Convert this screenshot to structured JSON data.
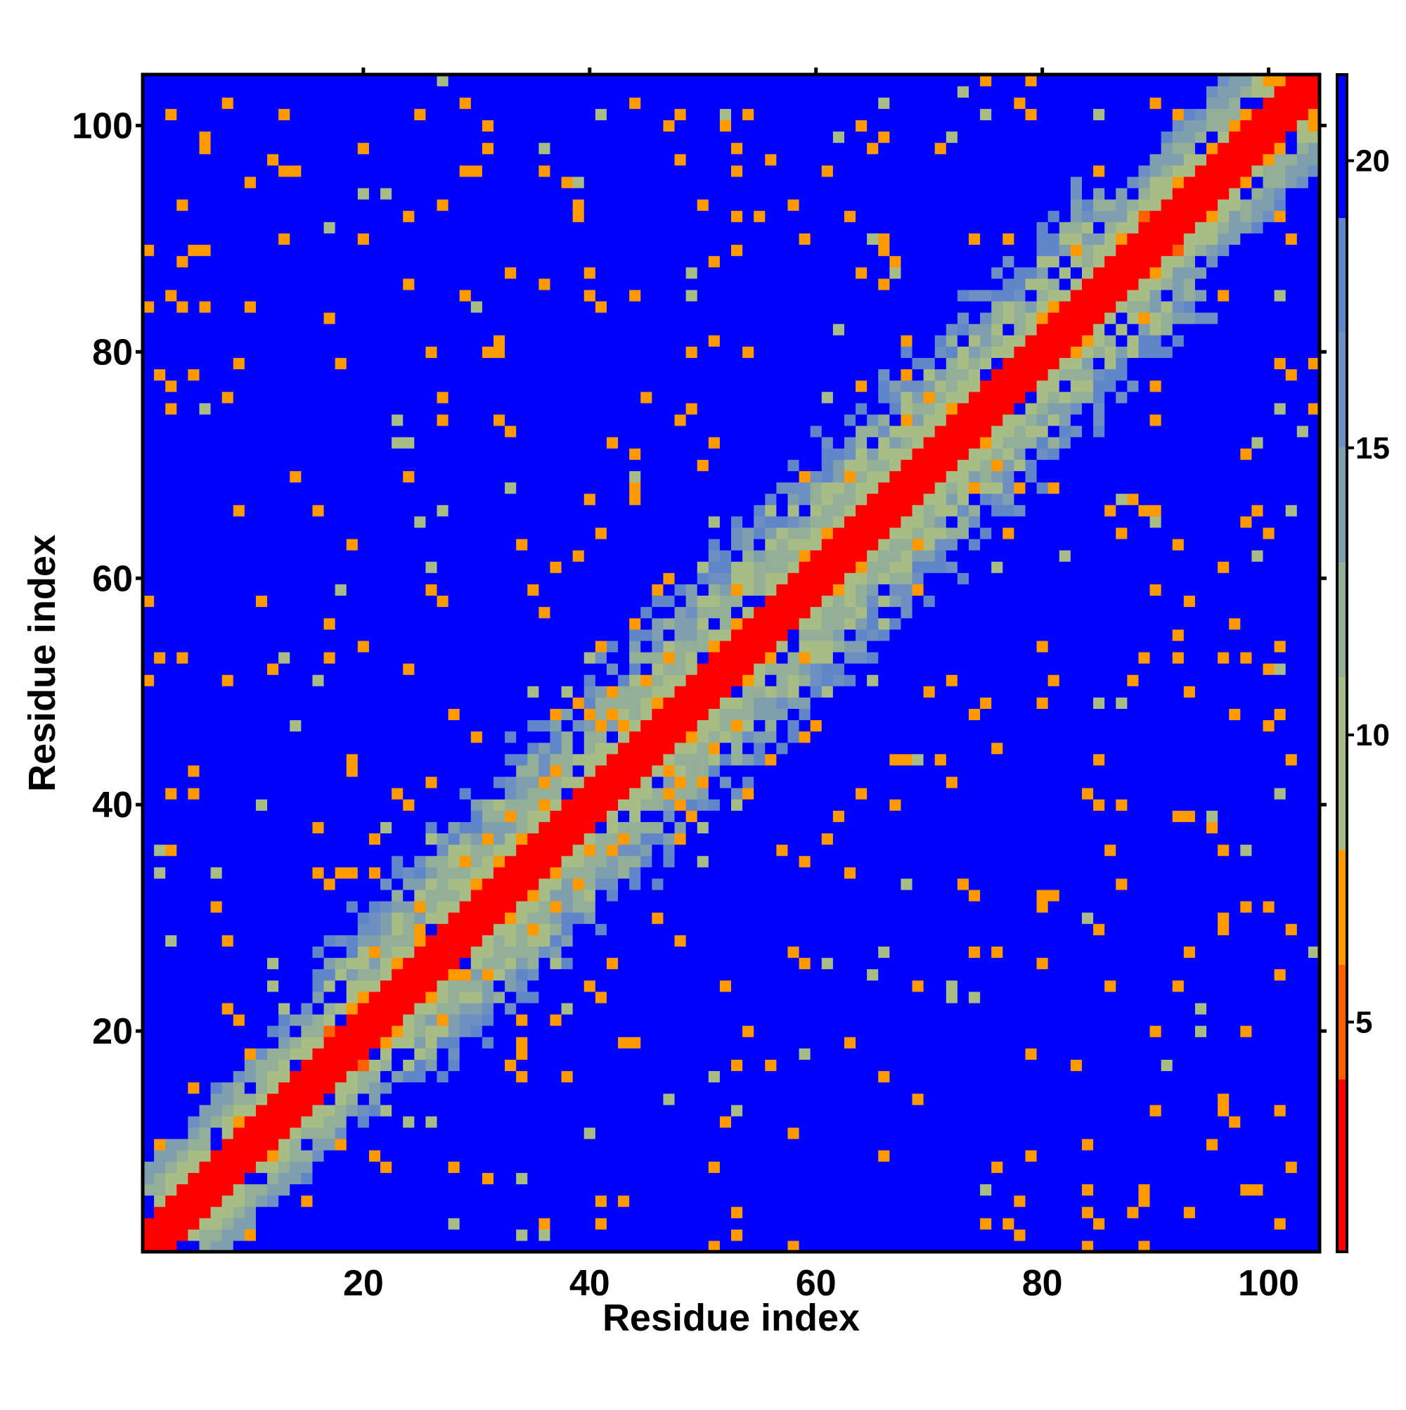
{
  "chart_data": {
    "type": "heatmap",
    "title": "",
    "xlabel": "Residue index",
    "ylabel": "Residue index",
    "xlim": [
      1,
      104
    ],
    "ylim": [
      1,
      104
    ],
    "x_ticks": [
      20,
      40,
      60,
      80,
      100
    ],
    "y_ticks": [
      20,
      40,
      60,
      80,
      100
    ],
    "x_tick_labels": [
      "20",
      "40",
      "60",
      "80",
      "100"
    ],
    "y_tick_labels": [
      "20",
      "40",
      "60",
      "80",
      "100"
    ],
    "n_residues": 104,
    "grid": false,
    "value_range": [
      1,
      21.5
    ],
    "colorbar": {
      "ticks": [
        5,
        10,
        15,
        20
      ],
      "tick_labels": [
        "5",
        "10",
        "15",
        "20"
      ],
      "placement": "right"
    },
    "color_scale": [
      {
        "from": 1.0,
        "to": 4.0,
        "color": "#ff0000"
      },
      {
        "from": 4.0,
        "to": 6.0,
        "color": "#ff6000"
      },
      {
        "from": 6.0,
        "to": 8.0,
        "color": "#ff9900"
      },
      {
        "from": 8.0,
        "to": 11.0,
        "color": "#a8bc86"
      },
      {
        "from": 11.0,
        "to": 13.0,
        "color": "#93af98"
      },
      {
        "from": 13.0,
        "to": 15.0,
        "color": "#7f9faf"
      },
      {
        "from": 15.0,
        "to": 17.0,
        "color": "#6d8fc2"
      },
      {
        "from": 17.0,
        "to": 19.0,
        "color": "#5f86c9"
      },
      {
        "from": 19.0,
        "to": 21.5,
        "color": "#0000ff"
      }
    ],
    "description_of_values": "Symmetric residue-residue distance map: near-diagonal cells low (red), long-range contacts and helix-helix crossings in orange, intermediate distances in green-grey-blue, distances above the scale in blue."
  }
}
